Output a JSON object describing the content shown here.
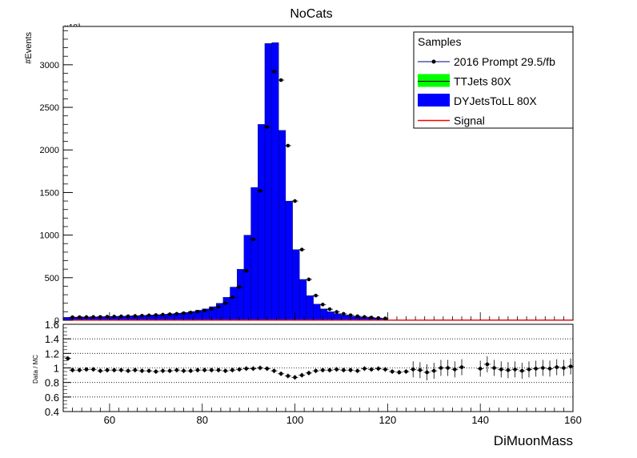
{
  "chart_data": [
    {
      "type": "bar",
      "title": "NoCats",
      "ylabel": "#Events",
      "xlabel": "",
      "y_exponent_label": "×10³",
      "xlim": [
        50,
        160
      ],
      "ylim": [
        0,
        3.45
      ],
      "bin_width": 1.5,
      "y_ticks": [
        0,
        500,
        1000,
        1500,
        2000,
        2500,
        3000
      ],
      "y_tick_labels": [
        "0",
        "500",
        "1000",
        "1500",
        "2000",
        "2500",
        "3000"
      ],
      "legend": {
        "title": "Samples",
        "placement": "top-right",
        "entries": [
          {
            "label": "2016 Prompt 29.5/fb",
            "style": "marker-line",
            "color": "#000080"
          },
          {
            "label": "TTJets 80X",
            "style": "fill",
            "color": "#00ff00"
          },
          {
            "label": "DYJetsToLL 80X",
            "style": "fill",
            "color": "#0000ff"
          },
          {
            "label": "Signal",
            "style": "line",
            "color": "#ff0000"
          }
        ]
      },
      "series": [
        {
          "name": "DYJetsToLL 80X",
          "color": "#0000ff",
          "bins": [
            [
              50,
              51.5,
              0.035
            ],
            [
              51.5,
              53,
              0.037
            ],
            [
              53,
              54.5,
              0.038
            ],
            [
              54.5,
              56,
              0.04
            ],
            [
              56,
              57.5,
              0.041
            ],
            [
              57.5,
              59,
              0.043
            ],
            [
              59,
              60.5,
              0.045
            ],
            [
              60.5,
              62,
              0.047
            ],
            [
              62,
              63.5,
              0.049
            ],
            [
              63.5,
              65,
              0.052
            ],
            [
              65,
              66.5,
              0.055
            ],
            [
              66.5,
              68,
              0.058
            ],
            [
              68,
              69.5,
              0.062
            ],
            [
              69.5,
              71,
              0.066
            ],
            [
              71,
              72.5,
              0.071
            ],
            [
              72.5,
              74,
              0.077
            ],
            [
              74,
              75.5,
              0.084
            ],
            [
              75.5,
              77,
              0.093
            ],
            [
              77,
              78.5,
              0.104
            ],
            [
              78.5,
              80,
              0.118
            ],
            [
              80,
              81.5,
              0.135
            ],
            [
              81.5,
              83,
              0.16
            ],
            [
              83,
              84.5,
              0.2
            ],
            [
              84.5,
              86,
              0.27
            ],
            [
              86,
              87.5,
              0.39
            ],
            [
              87.5,
              89,
              0.6
            ],
            [
              89,
              90.5,
              1.0
            ],
            [
              90.5,
              92,
              1.56
            ],
            [
              92,
              93.5,
              2.3
            ],
            [
              93.5,
              95,
              3.25
            ],
            [
              95,
              96.5,
              3.26
            ],
            [
              96.5,
              98,
              2.23
            ],
            [
              98,
              99.5,
              1.4
            ],
            [
              99.5,
              101,
              0.83
            ],
            [
              101,
              102.5,
              0.48
            ],
            [
              102.5,
              104,
              0.29
            ],
            [
              104,
              105.5,
              0.19
            ],
            [
              105.5,
              107,
              0.135
            ],
            [
              107,
              108.5,
              0.1
            ],
            [
              108.5,
              110,
              0.078
            ],
            [
              110,
              111.5,
              0.062
            ],
            [
              111.5,
              113,
              0.05
            ],
            [
              113,
              114.5,
              0.041
            ],
            [
              114.5,
              116,
              0.034
            ],
            [
              116,
              117.5,
              0.028
            ],
            [
              117.5,
              119,
              0.023
            ],
            [
              119,
              120,
              0.019
            ]
          ]
        },
        {
          "name": "TTJets 80X",
          "color": "#00ff00",
          "values": [
            0.003
          ]
        },
        {
          "name": "Signal",
          "color": "#ff0000",
          "values": [
            0.002
          ]
        },
        {
          "name": "2016 Prompt 29.5/fb",
          "color": "#000000",
          "points": [
            [
              52,
              0.036
            ],
            [
              53.5,
              0.037
            ],
            [
              55,
              0.038
            ],
            [
              56.5,
              0.039
            ],
            [
              58,
              0.04
            ],
            [
              59.5,
              0.042
            ],
            [
              61,
              0.044
            ],
            [
              62.5,
              0.046
            ],
            [
              64,
              0.048
            ],
            [
              65.5,
              0.051
            ],
            [
              67,
              0.054
            ],
            [
              68.5,
              0.058
            ],
            [
              70,
              0.062
            ],
            [
              71.5,
              0.066
            ],
            [
              73,
              0.071
            ],
            [
              74.5,
              0.076
            ],
            [
              76,
              0.083
            ],
            [
              77.5,
              0.091
            ],
            [
              79,
              0.101
            ],
            [
              80.5,
              0.115
            ],
            [
              82,
              0.132
            ],
            [
              83.5,
              0.158
            ],
            [
              85,
              0.2
            ],
            [
              86.5,
              0.27
            ],
            [
              88,
              0.39
            ],
            [
              89.5,
              0.58
            ],
            [
              91,
              0.95
            ],
            [
              92.5,
              1.52
            ],
            [
              94,
              2.27
            ],
            [
              95.5,
              2.92
            ],
            [
              97,
              2.82
            ],
            [
              98.5,
              2.05
            ],
            [
              100,
              1.4
            ],
            [
              101.5,
              0.83
            ],
            [
              103,
              0.48
            ],
            [
              104.5,
              0.29
            ],
            [
              106,
              0.185
            ],
            [
              107.5,
              0.13
            ],
            [
              109,
              0.098
            ],
            [
              110.5,
              0.076
            ],
            [
              112,
              0.06
            ],
            [
              113.5,
              0.048
            ],
            [
              115,
              0.04
            ],
            [
              116.5,
              0.033
            ],
            [
              118,
              0.027
            ],
            [
              119.5,
              0.022
            ]
          ]
        }
      ]
    },
    {
      "type": "scatter",
      "title": "",
      "xlabel": "DiMuonMass",
      "ylabel": "Data / MC",
      "xlim": [
        50,
        160
      ],
      "ylim": [
        0.4,
        1.6
      ],
      "x_ticks": [
        60,
        80,
        100,
        120,
        140,
        160
      ],
      "x_tick_labels": [
        "60",
        "80",
        "100",
        "120",
        "140",
        "160"
      ],
      "y_ticks": [
        0.4,
        0.6,
        0.8,
        1,
        1.2,
        1.4,
        1.6
      ],
      "y_tick_labels": [
        "0.4",
        "0.6",
        "0.8",
        "1",
        "1.2",
        "1.4",
        "1.6"
      ],
      "series": [
        {
          "name": "",
          "color": "#000000",
          "points": [
            [
              51,
              1.13
            ],
            [
              52,
              0.97
            ],
            [
              53.5,
              0.97
            ],
            [
              55,
              0.98
            ],
            [
              56.5,
              0.98
            ],
            [
              58,
              0.96
            ],
            [
              59.5,
              0.97
            ],
            [
              61,
              0.97
            ],
            [
              62.5,
              0.97
            ],
            [
              64,
              0.96
            ],
            [
              65.5,
              0.97
            ],
            [
              67,
              0.96
            ],
            [
              68.5,
              0.96
            ],
            [
              70,
              0.95
            ],
            [
              71.5,
              0.96
            ],
            [
              73,
              0.96
            ],
            [
              74.5,
              0.97
            ],
            [
              76,
              0.96
            ],
            [
              77.5,
              0.96
            ],
            [
              79,
              0.97
            ],
            [
              80.5,
              0.97
            ],
            [
              82,
              0.97
            ],
            [
              83.5,
              0.97
            ],
            [
              85,
              0.96
            ],
            [
              86.5,
              0.97
            ],
            [
              88,
              0.98
            ],
            [
              89.5,
              0.99
            ],
            [
              91,
              0.99
            ],
            [
              92.5,
              1.0
            ],
            [
              94,
              0.99
            ],
            [
              95.5,
              0.96
            ],
            [
              97,
              0.92
            ],
            [
              98.5,
              0.89
            ],
            [
              100,
              0.87
            ],
            [
              101.5,
              0.9
            ],
            [
              103,
              0.93
            ],
            [
              104.5,
              0.96
            ],
            [
              106,
              0.97
            ],
            [
              107.5,
              0.97
            ],
            [
              109,
              0.98
            ],
            [
              110.5,
              0.97
            ],
            [
              112,
              0.97
            ],
            [
              113.5,
              0.96
            ],
            [
              115,
              0.99
            ],
            [
              116.5,
              0.98
            ],
            [
              118,
              0.99
            ],
            [
              119.5,
              0.98
            ],
            [
              121,
              0.95
            ],
            [
              122.5,
              0.94
            ],
            [
              124,
              0.95
            ],
            [
              125.5,
              0.98
            ],
            [
              127,
              0.97
            ],
            [
              128.5,
              0.94
            ],
            [
              130,
              0.96
            ],
            [
              131.5,
              1.0
            ],
            [
              133,
              1.0
            ],
            [
              134.5,
              0.98
            ],
            [
              136,
              1.01
            ],
            [
              140,
              0.99
            ],
            [
              141.5,
              1.05
            ],
            [
              143,
              1.0
            ],
            [
              144.5,
              0.98
            ],
            [
              146,
              0.97
            ],
            [
              147.5,
              0.98
            ],
            [
              149,
              0.96
            ],
            [
              150.5,
              0.98
            ],
            [
              152,
              0.99
            ],
            [
              153.5,
              1.0
            ],
            [
              155,
              0.99
            ],
            [
              156.5,
              1.01
            ],
            [
              158,
              1.0
            ],
            [
              159.5,
              1.02
            ]
          ]
        }
      ]
    }
  ]
}
